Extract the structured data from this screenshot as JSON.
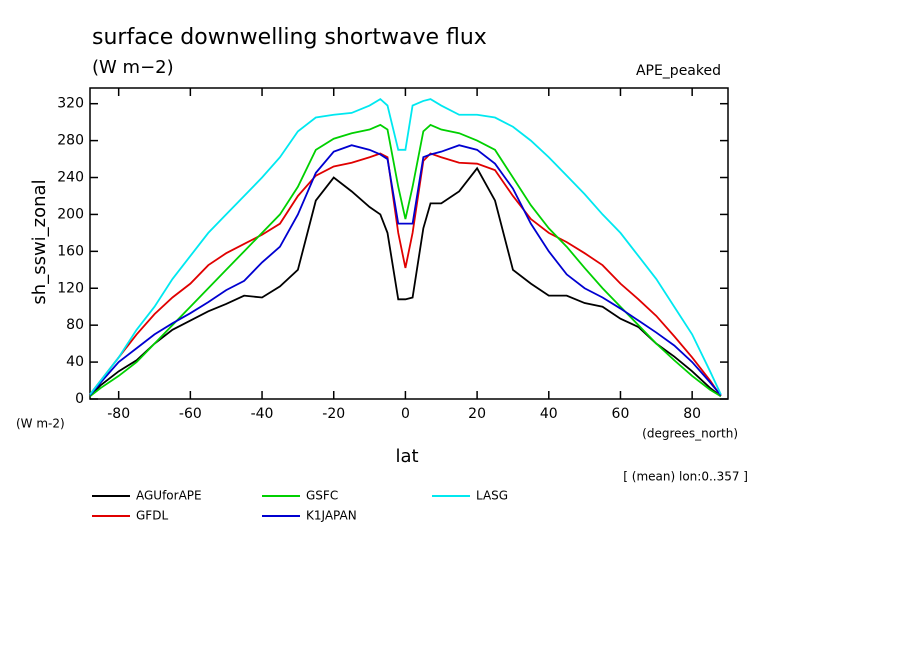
{
  "chart_data": {
    "type": "line",
    "title": "surface downwelling shortwave flux",
    "subtitle": "(W m−2)",
    "annotation": "APE_peaked",
    "y_label": "sh_sswi_zonal",
    "y_unit": "(W m-2)",
    "x_label": "lat",
    "x_unit": "(degrees_north)",
    "note": "[ (mean) lon:0..357 ]",
    "x": [
      -88,
      -85,
      -80,
      -75,
      -70,
      -65,
      -60,
      -55,
      -50,
      -45,
      -40,
      -35,
      -30,
      -25,
      -20,
      -15,
      -10,
      -7,
      -5,
      -2,
      0,
      2,
      5,
      7,
      10,
      15,
      20,
      25,
      30,
      35,
      40,
      45,
      50,
      55,
      60,
      65,
      70,
      75,
      80,
      85,
      88
    ],
    "series": [
      {
        "name": "AGUforAPE",
        "color": "#000000",
        "values": [
          3,
          15,
          30,
          42,
          60,
          75,
          85,
          95,
          103,
          112,
          110,
          122,
          140,
          215,
          240,
          225,
          208,
          200,
          180,
          108,
          108,
          110,
          185,
          212,
          212,
          225,
          250,
          215,
          140,
          125,
          112,
          112,
          104,
          100,
          87,
          78,
          60,
          46,
          30,
          12,
          3
        ]
      },
      {
        "name": "GFDL",
        "color": "#e00000",
        "values": [
          5,
          20,
          45,
          70,
          92,
          110,
          125,
          145,
          158,
          168,
          178,
          190,
          220,
          242,
          252,
          256,
          262,
          266,
          262,
          180,
          142,
          180,
          258,
          266,
          262,
          256,
          255,
          248,
          220,
          195,
          180,
          170,
          158,
          145,
          125,
          108,
          90,
          68,
          45,
          20,
          3
        ]
      },
      {
        "name": "GSFC",
        "color": "#00d000",
        "values": [
          3,
          12,
          25,
          40,
          60,
          80,
          100,
          120,
          140,
          160,
          180,
          200,
          230,
          270,
          282,
          288,
          292,
          297,
          292,
          230,
          195,
          230,
          290,
          297,
          292,
          288,
          280,
          270,
          240,
          210,
          185,
          165,
          142,
          120,
          100,
          80,
          60,
          42,
          25,
          10,
          3
        ]
      },
      {
        "name": "K1JAPAN",
        "color": "#0000d0",
        "values": [
          4,
          18,
          40,
          55,
          70,
          82,
          93,
          105,
          118,
          128,
          148,
          165,
          200,
          245,
          268,
          275,
          270,
          265,
          260,
          190,
          190,
          190,
          262,
          265,
          268,
          275,
          270,
          255,
          228,
          190,
          160,
          135,
          120,
          110,
          98,
          85,
          72,
          58,
          40,
          18,
          4
        ]
      },
      {
        "name": "LASG",
        "color": "#00e8f0",
        "values": [
          5,
          20,
          45,
          75,
          100,
          130,
          155,
          180,
          200,
          220,
          240,
          262,
          290,
          305,
          308,
          310,
          318,
          325,
          318,
          270,
          270,
          318,
          323,
          325,
          318,
          308,
          308,
          305,
          295,
          280,
          262,
          242,
          222,
          200,
          180,
          155,
          130,
          100,
          70,
          30,
          5
        ]
      }
    ],
    "xlim": [
      -88,
      90
    ],
    "ylim": [
      0,
      337
    ],
    "xticks": [
      -80,
      -60,
      -40,
      -20,
      0,
      20,
      40,
      60,
      80
    ],
    "yticks": [
      0,
      40,
      80,
      120,
      160,
      200,
      240,
      280,
      320
    ]
  }
}
